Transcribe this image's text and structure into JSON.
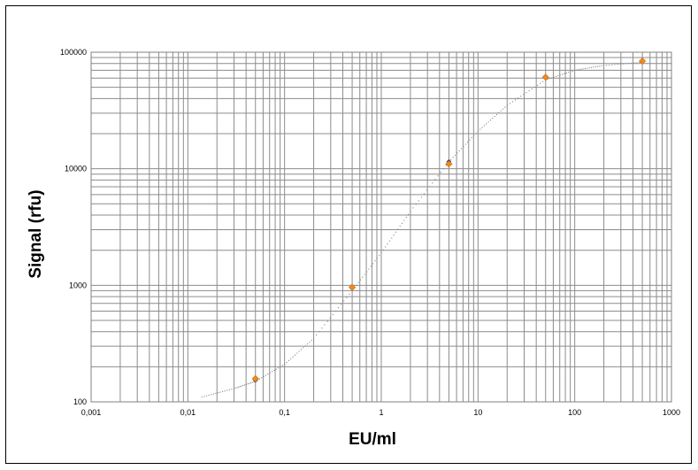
{
  "chart_data": {
    "type": "scatter",
    "title": "",
    "xlabel": "EU/ml",
    "ylabel": "Signal (rfu)",
    "x_scale": "log",
    "y_scale": "log",
    "xlim": [
      0.001,
      1000
    ],
    "ylim": [
      100,
      100000
    ],
    "x_ticks": [
      "0,001",
      "0,01",
      "0,1",
      "1",
      "10",
      "100",
      "1000"
    ],
    "y_ticks": [
      "100",
      "1000",
      "10000",
      "100000"
    ],
    "grid": true,
    "legend": "none",
    "series": [
      {
        "kind": "points",
        "color": "#f28a1a",
        "x": [
          0.05,
          0.5,
          5,
          50,
          500
        ],
        "y": [
          158,
          960,
          11000,
          61000,
          84000
        ]
      },
      {
        "kind": "points",
        "color": "#1f3a93",
        "x": [
          0.05,
          5
        ],
        "y": [
          153,
          11500
        ]
      },
      {
        "kind": "fit-curve",
        "style": "dotted",
        "color": "#808080",
        "x": [
          0.014,
          0.03,
          0.05,
          0.1,
          0.2,
          0.5,
          1,
          2,
          5,
          10,
          20,
          50,
          100,
          200,
          500
        ],
        "y": [
          110,
          130,
          150,
          210,
          350,
          900,
          1900,
          4300,
          11500,
          21000,
          35000,
          58000,
          70000,
          77000,
          82000
        ]
      }
    ]
  }
}
